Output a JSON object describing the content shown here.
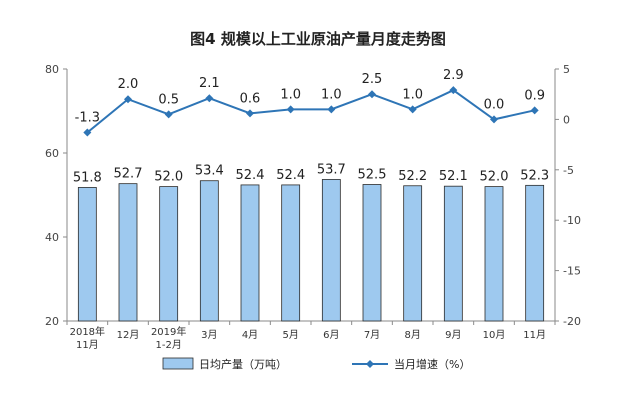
{
  "chart_data": {
    "type": "bar+line",
    "title": "图4  规模以上工业原油产量月度走势图",
    "categories": [
      [
        "2018年",
        "11月"
      ],
      [
        "12月"
      ],
      [
        "2019年",
        "1-2月"
      ],
      [
        "3月"
      ],
      [
        "4月"
      ],
      [
        "5月"
      ],
      [
        "6月"
      ],
      [
        "7月"
      ],
      [
        "8月"
      ],
      [
        "9月"
      ],
      [
        "10月"
      ],
      [
        "11月"
      ]
    ],
    "series": [
      {
        "name": "日均产量（万吨）",
        "type": "bar",
        "axis": "left",
        "color": "#9ec9ef",
        "values": [
          51.8,
          52.7,
          52.0,
          53.4,
          52.4,
          52.4,
          53.7,
          52.5,
          52.2,
          52.1,
          52.0,
          52.3
        ],
        "labels": [
          "51.8",
          "52.7",
          "52.0",
          "53.4",
          "52.4",
          "52.4",
          "53.7",
          "52.5",
          "52.2",
          "52.1",
          "52.0",
          "52.3"
        ]
      },
      {
        "name": "当月增速（%）",
        "type": "line",
        "axis": "right",
        "color": "#2e75b6",
        "values": [
          -1.3,
          2.0,
          0.5,
          2.1,
          0.6,
          1.0,
          1.0,
          2.5,
          1.0,
          2.9,
          0.0,
          0.9
        ],
        "labels": [
          "-1.3",
          "2.0",
          "0.5",
          "2.1",
          "0.6",
          "1.0",
          "1.0",
          "2.5",
          "1.0",
          "2.9",
          "0.0",
          "0.9"
        ]
      }
    ],
    "y_left": {
      "min": 20,
      "max": 80,
      "ticks": [
        "20",
        "40",
        "60",
        "80"
      ]
    },
    "y_right": {
      "min": -20,
      "max": 5,
      "ticks": [
        "-20",
        "-15",
        "-10",
        "-5",
        "0",
        "5"
      ]
    },
    "grid": false,
    "legend_position": "bottom"
  }
}
